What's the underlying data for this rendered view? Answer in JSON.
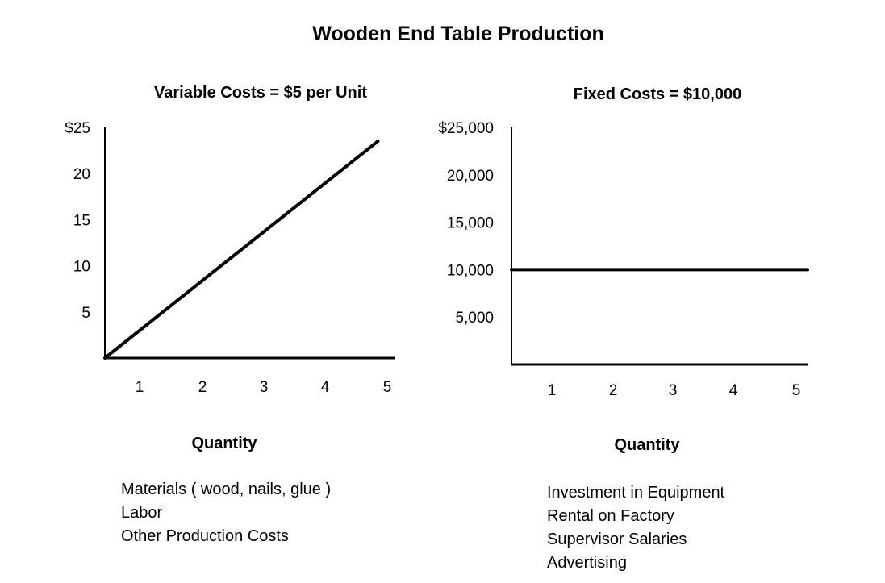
{
  "chart_data": {
    "title": "Wooden End Table Production",
    "charts": [
      {
        "type": "line",
        "subtitle": "Variable Costs = $5 per Unit",
        "xlabel": "Quantity",
        "ylabel": "",
        "x_ticks": [
          "1",
          "2",
          "3",
          "4",
          "5"
        ],
        "y_ticks": [
          {
            "value": 5,
            "label": "5"
          },
          {
            "value": 10,
            "label": "10"
          },
          {
            "value": 15,
            "label": "15"
          },
          {
            "value": 20,
            "label": "20"
          },
          {
            "value": 25,
            "label": "$25"
          }
        ],
        "xlim": [
          0.5,
          5.5
        ],
        "ylim": [
          0,
          25
        ],
        "series": [
          {
            "name": "Variable Costs",
            "points": [
              {
                "x": 0.5,
                "y": 0
              },
              {
                "x": 5.2,
                "y": 23.5
              }
            ]
          }
        ],
        "cost_items": [
          "Materials ( wood, nails, glue )",
          "Labor",
          "Other Production Costs"
        ]
      },
      {
        "type": "line",
        "subtitle": "Fixed Costs = $10,000",
        "xlabel": "Quantity",
        "ylabel": "",
        "x_ticks": [
          "1",
          "2",
          "3",
          "4",
          "5"
        ],
        "y_ticks": [
          {
            "value": 5000,
            "label": "5,000"
          },
          {
            "value": 10000,
            "label": "10,000"
          },
          {
            "value": 15000,
            "label": "15,000"
          },
          {
            "value": 20000,
            "label": "20,000"
          },
          {
            "value": 25000,
            "label": "$25,000"
          }
        ],
        "xlim": [
          0.5,
          5.5
        ],
        "ylim": [
          0,
          25000
        ],
        "series": [
          {
            "name": "Fixed Costs",
            "points": [
              {
                "x": 0.5,
                "y": 10000
              },
              {
                "x": 5.5,
                "y": 10000
              }
            ]
          }
        ],
        "cost_items": [
          "Investment in Equipment",
          "Rental on Factory",
          "Supervisor Salaries",
          "Advertising"
        ]
      }
    ]
  },
  "colors": {
    "ink": "#000000",
    "background": "#ffffff"
  }
}
